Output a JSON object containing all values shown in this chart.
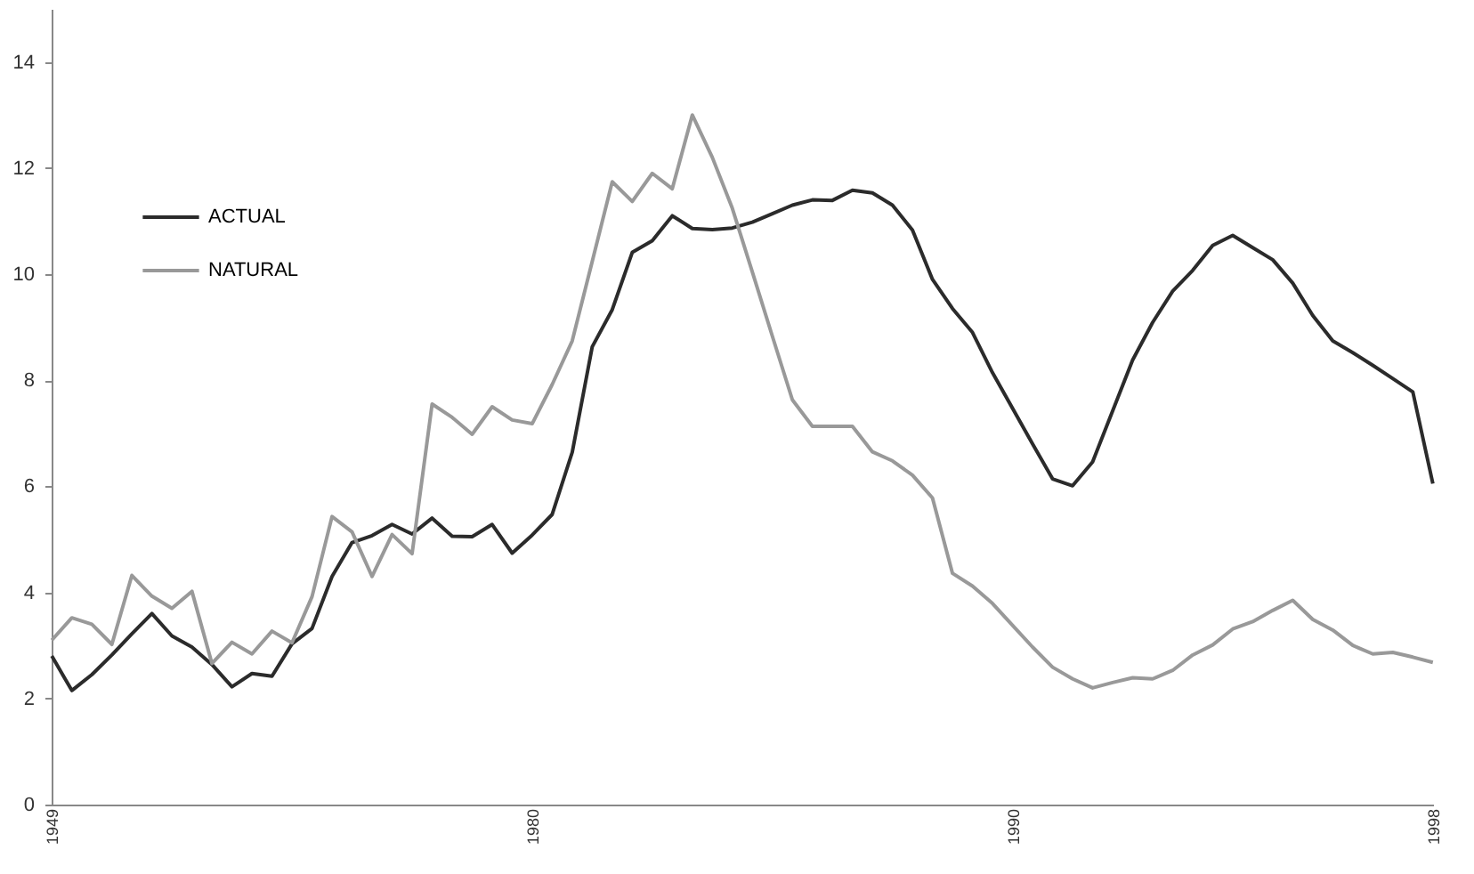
{
  "chart_data": {
    "type": "line",
    "categories": [
      "1949",
      null,
      null,
      null,
      null,
      null,
      null,
      null,
      null,
      null,
      null,
      null,
      null,
      null,
      null,
      null,
      null,
      null,
      null,
      null,
      null,
      null,
      null,
      null,
      "1980",
      null,
      null,
      null,
      null,
      null,
      null,
      null,
      null,
      null,
      null,
      null,
      null,
      null,
      null,
      null,
      null,
      null,
      null,
      null,
      null,
      null,
      null,
      null,
      "1990",
      null,
      null,
      null,
      null,
      null,
      null,
      null,
      null,
      null,
      null,
      null,
      null,
      null,
      null,
      null,
      null,
      null,
      null,
      null,
      null,
      "1998"
    ],
    "series": [
      {
        "name": "ACTUAL",
        "color": "#2b2b2b",
        "values": [
          2.8,
          2.15,
          2.45,
          2.82,
          3.22,
          3.6,
          3.18,
          2.97,
          2.64,
          2.22,
          2.47,
          2.42,
          3.03,
          3.32,
          4.3,
          4.94,
          5.07,
          5.28,
          5.1,
          5.4,
          5.06,
          5.05,
          5.28,
          4.74,
          5.08,
          5.47,
          6.64,
          8.63,
          9.33,
          10.41,
          10.63,
          11.1,
          10.86,
          10.84,
          10.87,
          10.98,
          11.14,
          11.3,
          11.4,
          11.39,
          11.58,
          11.53,
          11.3,
          10.83,
          9.9,
          9.35,
          8.9,
          8.14,
          7.47,
          6.8,
          6.14,
          6.01,
          6.46,
          7.42,
          8.38,
          9.09,
          9.68,
          10.07,
          10.54,
          10.73,
          10.5,
          10.27,
          9.83,
          9.22,
          8.74,
          8.52,
          8.28,
          8.03,
          7.78,
          6.05
        ]
      },
      {
        "name": "NATURAL",
        "color": "#999999",
        "values": [
          3.1,
          3.52,
          3.4,
          3.02,
          4.32,
          3.93,
          3.7,
          4.02,
          2.66,
          3.06,
          2.84,
          3.27,
          3.05,
          3.92,
          5.43,
          5.14,
          4.3,
          5.09,
          4.73,
          7.55,
          7.3,
          6.98,
          7.5,
          7.25,
          7.18,
          7.92,
          8.74,
          10.24,
          11.74,
          11.37,
          11.9,
          11.61,
          13.0,
          12.2,
          11.24,
          10.04,
          8.83,
          7.63,
          7.13,
          7.13,
          7.13,
          6.65,
          6.48,
          6.21,
          5.78,
          4.36,
          4.12,
          3.79,
          3.38,
          2.97,
          2.59,
          2.37,
          2.2,
          2.3,
          2.39,
          2.37,
          2.53,
          2.82,
          3.01,
          3.31,
          3.45,
          3.66,
          3.85,
          3.49,
          3.29,
          3.0,
          2.84,
          2.87,
          2.78,
          2.68
        ]
      }
    ],
    "ylim": [
      0,
      15
    ],
    "yticks": [
      0,
      2,
      4,
      6,
      8,
      10,
      12,
      14
    ],
    "legend": "top left",
    "marker": "none",
    "line_style": "solid"
  }
}
